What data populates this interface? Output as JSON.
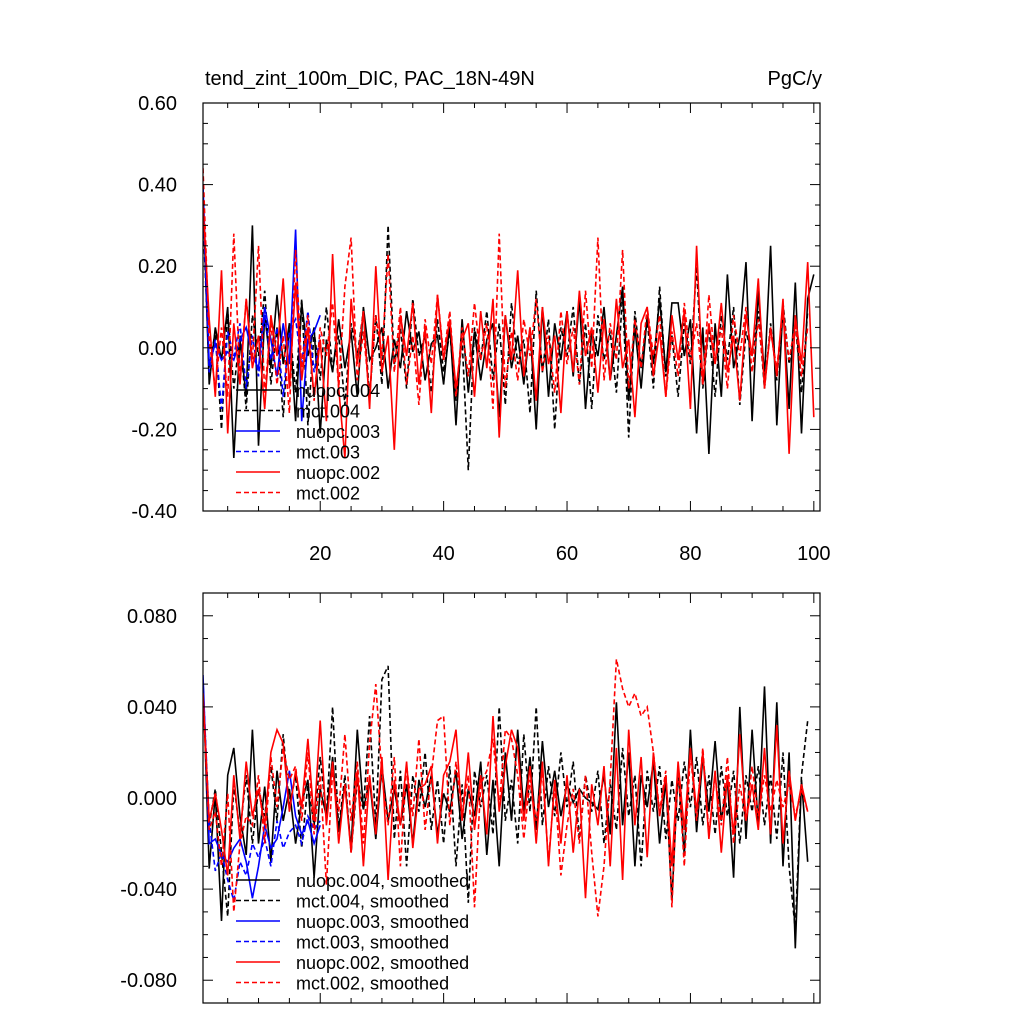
{
  "chart_data": [
    {
      "type": "line",
      "title": "tend_zint_100m_DIC, PAC_18N-49N",
      "units": "PgC/y",
      "xlim": [
        1,
        101
      ],
      "ylim": [
        -0.4,
        0.6
      ],
      "xticks": [
        20,
        40,
        60,
        80,
        100
      ],
      "yticks": [
        -0.4,
        -0.2,
        0.0,
        0.2,
        0.4,
        0.6
      ],
      "ytick_labels": [
        "-0.40",
        "-0.20",
        "0.00",
        "0.20",
        "0.40",
        "0.60"
      ],
      "legend_position": "lower-left",
      "series": [
        {
          "name": "nuopc.004",
          "color": "#000000",
          "dash": "solid",
          "x_start": 1,
          "values": [
            0.38,
            -0.09,
            0.05,
            -0.03,
            0.1,
            -0.27,
            0.02,
            -0.12,
            0.3,
            -0.24,
            0.08,
            -0.05,
            0.13,
            -0.04,
            0.06,
            -0.18,
            0.11,
            -0.02,
            0.05,
            -0.21,
            0.02,
            -0.06,
            0.07,
            -0.05,
            0.04,
            -0.12,
            0.1,
            -0.03,
            0.0,
            0.05,
            -0.1,
            0.02,
            -0.05,
            0.09,
            -0.01,
            0.04,
            -0.08,
            0.01,
            0.03,
            -0.09,
            0.06,
            -0.19,
            0.07,
            -0.11,
            0.04,
            -0.08,
            0.02,
            0.06,
            -0.17,
            0.08,
            -0.05,
            0.03,
            -0.09,
            0.05,
            -0.2,
            0.1,
            -0.12,
            0.06,
            -0.03,
            0.09,
            -0.07,
            0.12,
            -0.15,
            0.04,
            -0.02,
            0.1,
            -0.08,
            0.03,
            0.15,
            -0.13,
            0.05,
            -0.1,
            0.08,
            -0.04,
            0.12,
            -0.06,
            0.11,
            0.11,
            -0.02,
            0.07,
            -0.21,
            0.05,
            -0.26,
            0.06,
            -0.12,
            0.18,
            -0.05,
            0.03,
            0.21,
            -0.18,
            0.14,
            -0.07,
            0.25,
            -0.19,
            0.1,
            -0.15,
            0.16,
            -0.21,
            0.12,
            0.18
          ]
        },
        {
          "name": "mct.004",
          "color": "#000000",
          "dash": "dashed",
          "x_start": 1,
          "values": [
            0.32,
            -0.05,
            0.04,
            -0.2,
            0.09,
            -0.1,
            0.03,
            -0.15,
            0.08,
            -0.02,
            0.14,
            -0.09,
            0.05,
            -0.17,
            0.06,
            -0.11,
            0.12,
            -0.19,
            0.04,
            -0.08,
            0.1,
            -0.05,
            0.03,
            -0.14,
            0.06,
            -0.02,
            0.09,
            -0.12,
            0.08,
            -0.09,
            0.3,
            -0.04,
            0.05,
            -0.1,
            0.12,
            -0.02,
            0.03,
            -0.11,
            0.07,
            -0.06,
            0.04,
            -0.13,
            0.02,
            -0.3,
            0.05,
            -0.03,
            0.09,
            -0.08,
            0.06,
            -0.14,
            0.11,
            -0.04,
            0.02,
            -0.16,
            0.14,
            -0.06,
            0.07,
            -0.2,
            0.05,
            -0.02,
            0.1,
            -0.09,
            0.06,
            -0.15,
            0.08,
            -0.03,
            0.04,
            -0.11,
            0.13,
            -0.22,
            0.09,
            -0.05,
            0.07,
            -0.1,
            0.15,
            -0.07,
            0.03,
            -0.12,
            0.06,
            -0.04,
            0.2,
            -0.1,
            0.05,
            -0.12,
            0.08,
            -0.03,
            0.1,
            -0.14,
            0.04,
            -0.02,
            0.09,
            -0.1,
            0.06,
            -0.08,
            0.11,
            -0.04,
            0.06,
            -0.11,
            0.09
          ]
        },
        {
          "name": "nuopc.003",
          "color": "#0000ff",
          "dash": "solid",
          "x_start": 1,
          "values": [
            0.4,
            -0.04,
            0.01,
            -0.03,
            -0.01,
            -0.03,
            0.02,
            0.05,
            -0.02,
            -0.05,
            0.1,
            0.02,
            -0.07,
            0.06,
            -0.04,
            0.29,
            -0.18,
            0.02,
            0.04,
            0.08
          ]
        },
        {
          "name": "mct.003",
          "color": "#0000ff",
          "dash": "dashed",
          "x_start": 1,
          "values": [
            0.36,
            -0.06,
            0.02,
            -0.15,
            0.04,
            -0.02,
            0.06,
            -0.1,
            0.03,
            -0.07,
            0.08,
            -0.03,
            0.05,
            -0.12,
            0.04,
            0.07,
            -0.04,
            0.09,
            -0.06,
            0.03
          ]
        },
        {
          "name": "nuopc.002",
          "color": "#ff0000",
          "dash": "solid",
          "x_start": 1,
          "values": [
            0.35,
            0.07,
            -0.12,
            0.19,
            -0.21,
            0.06,
            -0.09,
            0.12,
            -0.05,
            0.03,
            -0.15,
            0.08,
            -0.02,
            0.17,
            -0.1,
            0.16,
            -0.08,
            0.05,
            -0.12,
            0.02,
            -0.18,
            0.23,
            -0.1,
            -0.27,
            0.12,
            -0.04,
            0.09,
            -0.15,
            0.2,
            -0.06,
            0.03,
            -0.25,
            0.08,
            -0.02,
            0.11,
            -0.09,
            0.05,
            -0.16,
            0.13,
            -0.03,
            0.07,
            -0.1,
            0.02,
            0.06,
            -0.12,
            0.09,
            -0.05,
            0.12,
            -0.22,
            0.08,
            -0.03,
            0.19,
            -0.07,
            0.05,
            -0.13,
            0.1,
            -0.04,
            0.03,
            -0.16,
            0.09,
            -0.06,
            0.14,
            -0.02,
            0.05,
            -0.11,
            0.07,
            -0.08,
            0.12,
            -0.05,
            0.02,
            -0.17,
            0.06,
            0.1,
            -0.07,
            0.04,
            -0.12,
            0.08,
            -0.03,
            0.09,
            -0.15,
            0.25,
            -0.09,
            0.06,
            -0.04,
            0.11,
            -0.06,
            0.03,
            -0.13,
            0.08,
            -0.02,
            0.17,
            -0.1,
            0.05,
            -0.07,
            0.12,
            -0.26,
            0.08,
            -0.04,
            0.21,
            -0.17
          ]
        },
        {
          "name": "mct.002",
          "color": "#ff0000",
          "dash": "dashed",
          "x_start": 1,
          "values": [
            0.44,
            0.02,
            -0.1,
            0.05,
            -0.12,
            0.28,
            -0.08,
            0.12,
            -0.03,
            0.25,
            -0.11,
            0.06,
            -0.09,
            0.03,
            -0.16,
            0.24,
            -0.05,
            0.08,
            -0.13,
            0.05,
            -0.02,
            0.11,
            -0.1,
            0.15,
            0.27,
            -0.08,
            0.04,
            -0.12,
            0.08,
            -0.02,
            0.23,
            -0.06,
            0.1,
            -0.09,
            0.03,
            -0.14,
            0.07,
            -0.04,
            0.13,
            -0.02,
            0.09,
            -0.12,
            0.05,
            -0.07,
            0.11,
            -0.03,
            0.06,
            -0.15,
            0.28,
            -0.1,
            0.04,
            -0.08,
            0.07,
            -0.02,
            0.12,
            -0.06,
            0.03,
            -0.11,
            0.09,
            -0.04,
            0.05,
            -0.09,
            0.14,
            -0.05,
            0.27,
            -0.08,
            0.06,
            -0.03,
            0.24,
            -0.1,
            0.07,
            -0.05,
            0.1,
            -0.02,
            0.08,
            -0.12,
            0.04,
            -0.07,
            0.11,
            -0.03,
            0.06,
            -0.09,
            0.13,
            -0.04,
            0.05,
            -0.1,
            0.08,
            -0.02,
            0.1,
            -0.06,
            0.07,
            -0.08,
            0.04,
            -0.05,
            0.09,
            -0.03,
            0.06,
            -0.07,
            0.05
          ]
        }
      ]
    },
    {
      "type": "line",
      "title": "",
      "xlim": [
        1,
        101
      ],
      "ylim": [
        -0.09,
        0.09
      ],
      "xticks": [
        20,
        40,
        60,
        80,
        100
      ],
      "yticks": [
        -0.08,
        -0.04,
        0.0,
        0.04,
        0.08
      ],
      "ytick_labels": [
        "-0.080",
        "-0.040",
        "0.000",
        "0.040",
        "0.080"
      ],
      "legend_position": "lower-left",
      "series": [
        {
          "name": "nuopc.004, smoothed",
          "color": "#000000",
          "dash": "solid",
          "x_start": 1,
          "values": [
            0.052,
            -0.031,
            0.002,
            -0.054,
            0.01,
            0.022,
            -0.008,
            -0.025,
            0.03,
            -0.02,
            0.005,
            -0.028,
            0.012,
            -0.01,
            0.004,
            -0.02,
            -0.002,
            0.008,
            -0.035,
            0.004,
            -0.008,
            0.018,
            -0.015,
            0.006,
            -0.022,
            0.03,
            -0.005,
            0.008,
            -0.018,
            0.014,
            -0.01,
            0.004,
            -0.012,
            0.006,
            -0.02,
            0.008,
            -0.004,
            0.01,
            -0.016,
            0.002,
            -0.006,
            0.012,
            -0.018,
            0.004,
            -0.008,
            0.016,
            -0.025,
            0.008,
            -0.03,
            0.02,
            -0.01,
            0.03,
            -0.006,
            0.018,
            -0.014,
            0.025,
            -0.004,
            0.012,
            -0.008,
            0.006,
            -0.002,
            0.004,
            0.0,
            -0.002,
            -0.005,
            0.01,
            -0.016,
            0.042,
            -0.012,
            0.02,
            -0.03,
            0.01,
            -0.004,
            0.016,
            -0.02,
            0.008,
            -0.045,
            0.012,
            -0.025,
            0.03,
            -0.015,
            0.018,
            -0.006,
            0.025,
            -0.01,
            0.008,
            -0.035,
            0.04,
            -0.018,
            0.03,
            -0.012,
            0.049,
            -0.02,
            0.042,
            -0.03,
            0.02,
            -0.066,
            0.008,
            -0.028
          ]
        },
        {
          "name": "mct.004, smoothed",
          "color": "#000000",
          "dash": "dashed",
          "x_start": 1,
          "values": [
            0.048,
            -0.012,
            0.004,
            -0.024,
            -0.052,
            0.006,
            -0.015,
            0.01,
            -0.02,
            0.004,
            -0.008,
            0.014,
            -0.01,
            0.028,
            -0.004,
            0.01,
            -0.022,
            0.006,
            -0.012,
            0.018,
            -0.008,
            0.04,
            -0.014,
            0.01,
            -0.024,
            0.008,
            -0.005,
            0.036,
            -0.012,
            0.052,
            0.058,
            -0.018,
            0.012,
            -0.03,
            0.01,
            -0.006,
            0.02,
            -0.014,
            0.008,
            -0.02,
            0.014,
            -0.03,
            0.006,
            -0.046,
            0.012,
            -0.004,
            0.01,
            -0.016,
            0.04,
            -0.01,
            0.008,
            -0.02,
            0.028,
            -0.006,
            0.04,
            -0.012,
            0.014,
            -0.008,
            0.02,
            -0.004,
            0.016,
            -0.018,
            0.01,
            -0.006,
            0.012,
            -0.02,
            0.006,
            -0.014,
            0.022,
            -0.008,
            0.01,
            -0.03,
            0.012,
            -0.006,
            0.014,
            -0.018,
            0.008,
            -0.01,
            0.016,
            -0.004,
            0.018,
            -0.012,
            0.01,
            -0.016,
            0.014,
            -0.008,
            0.012,
            -0.02,
            0.01,
            -0.006,
            0.014,
            -0.012,
            0.01,
            -0.018,
            0.02,
            -0.03,
            -0.058,
            0.01,
            0.034
          ]
        },
        {
          "name": "nuopc.003, smoothed",
          "color": "#0000ff",
          "dash": "solid",
          "x_start": 1,
          "values": [
            0.054,
            -0.02,
            -0.018,
            -0.025,
            -0.028,
            -0.022,
            -0.018,
            -0.028,
            -0.044,
            -0.03,
            -0.012,
            -0.022,
            -0.018,
            -0.004,
            0.012,
            -0.008,
            -0.016,
            -0.01,
            -0.02,
            -0.012
          ]
        },
        {
          "name": "mct.003, smoothed",
          "color": "#0000ff",
          "dash": "dashed",
          "x_start": 1,
          "values": [
            0.05,
            -0.01,
            -0.032,
            -0.024,
            -0.036,
            -0.045,
            -0.028,
            -0.034,
            -0.02,
            -0.026,
            -0.018,
            -0.03,
            -0.01,
            -0.022,
            -0.015,
            -0.012,
            -0.02,
            -0.008,
            -0.014,
            -0.01
          ]
        },
        {
          "name": "nuopc.002, smoothed",
          "color": "#ff0000",
          "dash": "solid",
          "x_start": 1,
          "values": [
            0.046,
            -0.01,
            0.002,
            -0.014,
            -0.034,
            0.01,
            -0.018,
            0.016,
            -0.008,
            0.004,
            -0.012,
            0.02,
            0.03,
            0.024,
            -0.006,
            0.012,
            -0.004,
            0.026,
            -0.01,
            0.034,
            -0.012,
            0.016,
            -0.02,
            0.006,
            -0.024,
            0.012,
            -0.03,
            0.01,
            -0.016,
            0.018,
            -0.036,
            0.008,
            -0.012,
            0.016,
            -0.022,
            0.004,
            0.006,
            0.014,
            -0.02,
            0.01,
            0.016,
            0.03,
            -0.01,
            0.02,
            -0.014,
            0.01,
            -0.016,
            0.036,
            -0.006,
            0.014,
            0.03,
            0.022,
            -0.01,
            0.014,
            -0.02,
            0.016,
            -0.03,
            0.008,
            -0.02,
            0.01,
            -0.024,
            0.004,
            -0.044,
            0.006,
            -0.012,
            0.014,
            -0.03,
            0.022,
            -0.036,
            0.03,
            -0.012,
            0.018,
            -0.026,
            0.02,
            -0.008,
            0.01,
            -0.03,
            0.016,
            -0.014,
            0.022,
            -0.006,
            0.02,
            -0.018,
            0.012,
            -0.024,
            0.01,
            -0.016,
            0.028,
            -0.01,
            0.006,
            -0.014,
            0.022,
            -0.016,
            0.032,
            -0.02,
            0.012,
            -0.01,
            0.006,
            -0.006
          ]
        },
        {
          "name": "mct.002, smoothed",
          "color": "#ff0000",
          "dash": "dashed",
          "x_start": 1,
          "values": [
            0.044,
            -0.014,
            -0.006,
            -0.03,
            0.002,
            -0.05,
            -0.02,
            -0.008,
            -0.012,
            0.01,
            -0.02,
            0.018,
            -0.004,
            0.022,
            0.008,
            0.014,
            -0.01,
            0.02,
            -0.016,
            0.01,
            -0.038,
            0.012,
            -0.006,
            0.028,
            -0.01,
            0.016,
            -0.02,
            0.024,
            0.05,
            0.01,
            -0.012,
            0.018,
            -0.03,
            0.014,
            -0.008,
            0.026,
            -0.014,
            0.01,
            0.034,
            0.036,
            -0.012,
            0.016,
            -0.008,
            0.01,
            -0.048,
            0.006,
            0.012,
            0.026,
            -0.004,
            0.03,
            0.026,
            0.01,
            -0.018,
            0.008,
            -0.01,
            0.012,
            -0.028,
            0.006,
            -0.034,
            -0.012,
            0.004,
            -0.02,
            0.01,
            -0.024,
            -0.052,
            -0.03,
            0.008,
            0.061,
            0.048,
            0.04,
            0.046,
            0.036,
            0.04,
            0.02,
            -0.006,
            0.012,
            -0.048,
            0.014,
            -0.03,
            0.02,
            -0.01,
            0.022,
            -0.016,
            0.01,
            -0.012,
            0.018,
            -0.02,
            0.006,
            -0.01,
            0.014,
            -0.008,
            0.01,
            -0.006,
            0.008,
            -0.004,
            0.006,
            -0.008,
            0.004,
            -0.006
          ]
        }
      ]
    }
  ]
}
